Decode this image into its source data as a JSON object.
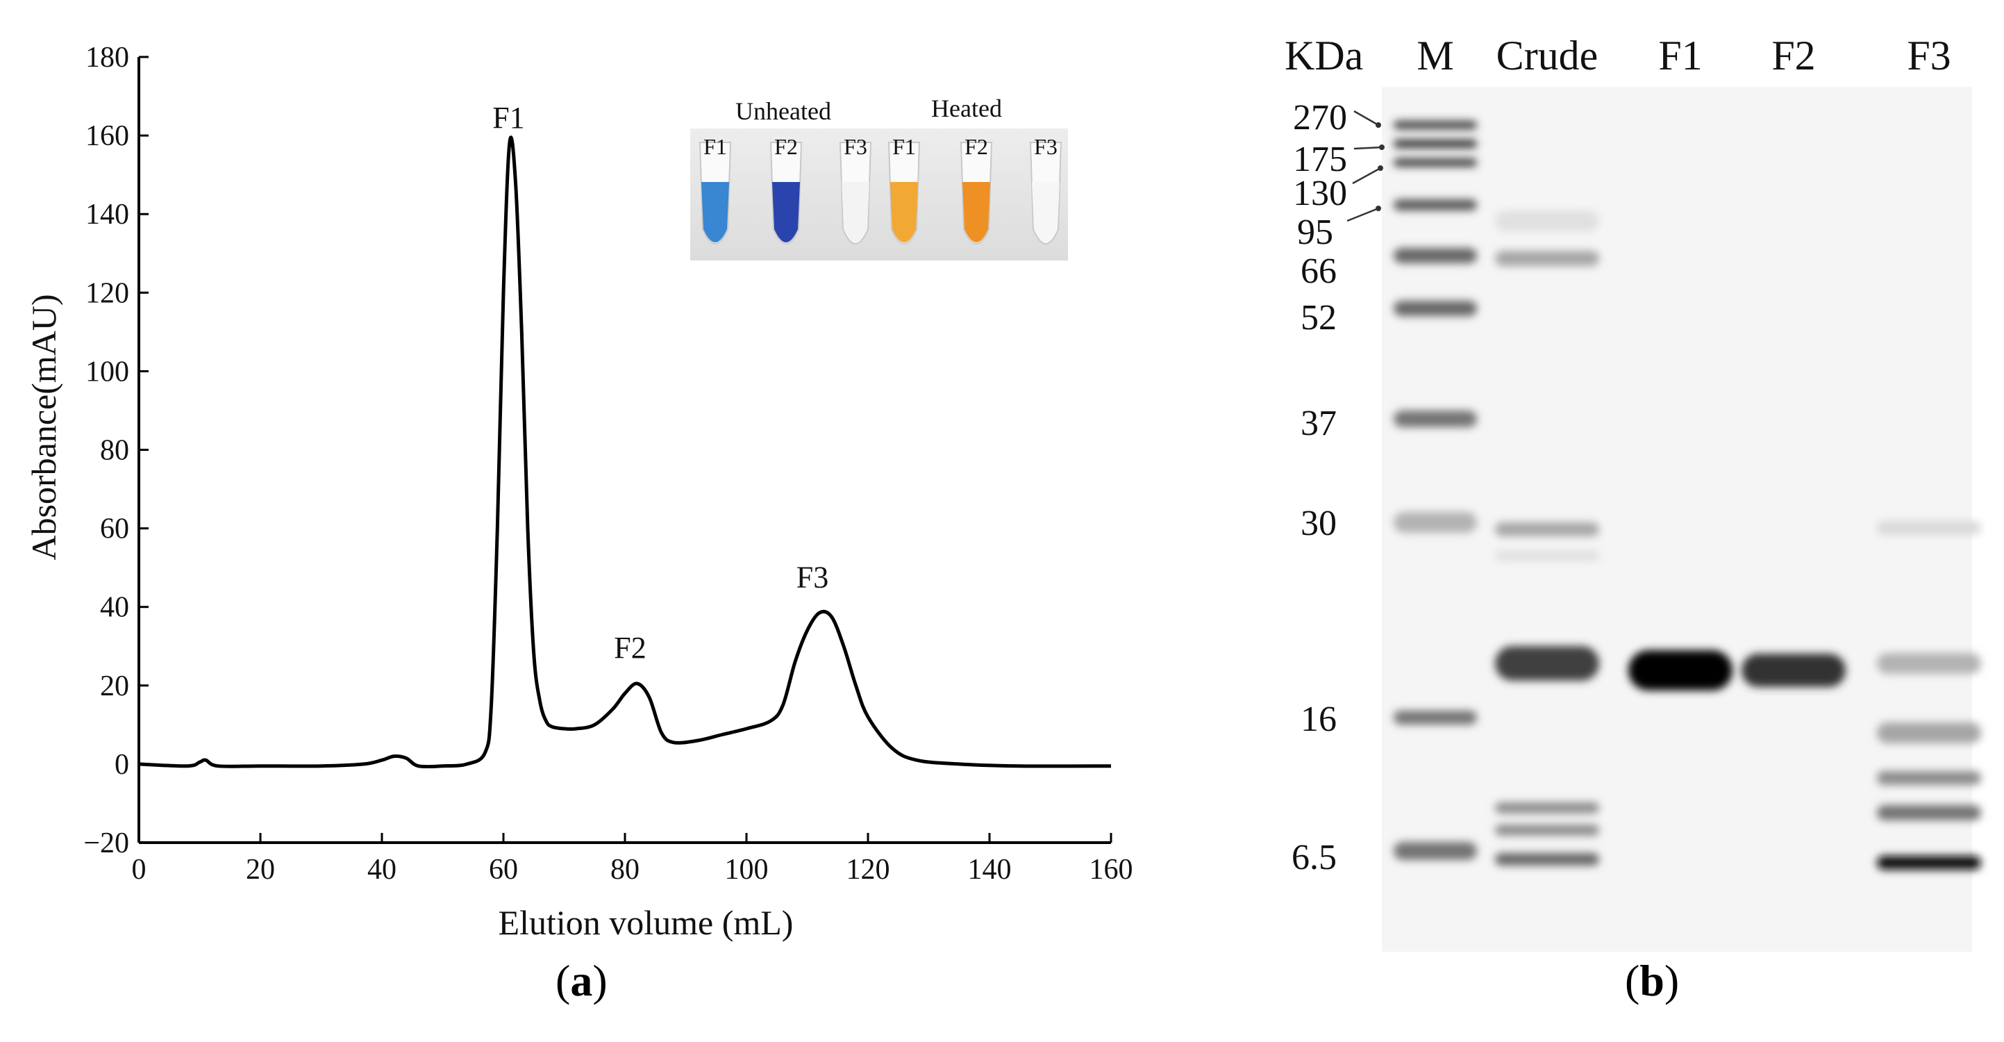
{
  "chart_data": [
    {
      "type": "line",
      "panel": "a",
      "xlabel": "Elution volume (mL)",
      "ylabel": "Absorbance(mAU)",
      "xlim": [
        0,
        160
      ],
      "ylim": [
        -20,
        180
      ],
      "xticks": [
        0,
        20,
        40,
        60,
        80,
        100,
        120,
        140,
        160
      ],
      "yticks": [
        -20,
        0,
        20,
        40,
        60,
        80,
        100,
        120,
        140,
        160,
        180
      ],
      "ytick_labels": [
        "−20",
        "0",
        "20",
        "40",
        "60",
        "80",
        "100",
        "120",
        "140",
        "160",
        "180"
      ],
      "grid": false,
      "series": [
        {
          "x": [
            0,
            8,
            10,
            11,
            13,
            20,
            30,
            37,
            40,
            42,
            44,
            46,
            50,
            54,
            57,
            58,
            59,
            60,
            61,
            62,
            63,
            64,
            65,
            66,
            67,
            68,
            70,
            72,
            75,
            78,
            80,
            82,
            84,
            86,
            88,
            92,
            96,
            100,
            104,
            106,
            108,
            110,
            112,
            114,
            116,
            118,
            120,
            124,
            128,
            135,
            145,
            160
          ],
          "y": [
            0,
            -0.5,
            0.5,
            1,
            -0.5,
            -0.5,
            -0.5,
            0,
            1,
            2,
            1.5,
            -0.5,
            -0.5,
            0,
            3,
            15,
            60,
            120,
            158,
            148,
            110,
            60,
            28,
            16,
            11,
            9.5,
            9,
            9,
            10,
            14,
            18,
            20.5,
            17,
            8,
            5.5,
            6,
            7.5,
            9,
            11,
            15,
            26,
            34,
            38.5,
            37.5,
            30,
            20,
            12,
            4,
            1,
            0,
            -0.5,
            -0.5
          ]
        }
      ],
      "annotations": [
        {
          "text": "F1",
          "x": 62,
          "y": 162
        },
        {
          "text": "F2",
          "x": 82,
          "y": 27
        },
        {
          "text": "F3",
          "x": 112,
          "y": 45
        }
      ],
      "inset": {
        "group_labels": [
          "Unheated",
          "Heated"
        ],
        "tubes": [
          {
            "label": "F1",
            "color": "#2e7fd0"
          },
          {
            "label": "F2",
            "color": "#1d3aa8"
          },
          {
            "label": "F3",
            "color": "#f2f2f2"
          },
          {
            "label": "F1",
            "color": "#f0a32a"
          },
          {
            "label": "F2",
            "color": "#ee8a18"
          },
          {
            "label": "F3",
            "color": "#f5f5f5"
          }
        ]
      }
    },
    {
      "type": "other",
      "panel": "b",
      "unit_label": "KDa",
      "lane_labels": [
        "M",
        "Crude",
        "F1",
        "F2",
        "F3"
      ],
      "marker_sizes": [
        "270",
        "175",
        "130",
        "95",
        "66",
        "52",
        "37",
        "30",
        "16",
        "6.5"
      ]
    }
  ],
  "panel_labels": [
    "a",
    "b"
  ]
}
